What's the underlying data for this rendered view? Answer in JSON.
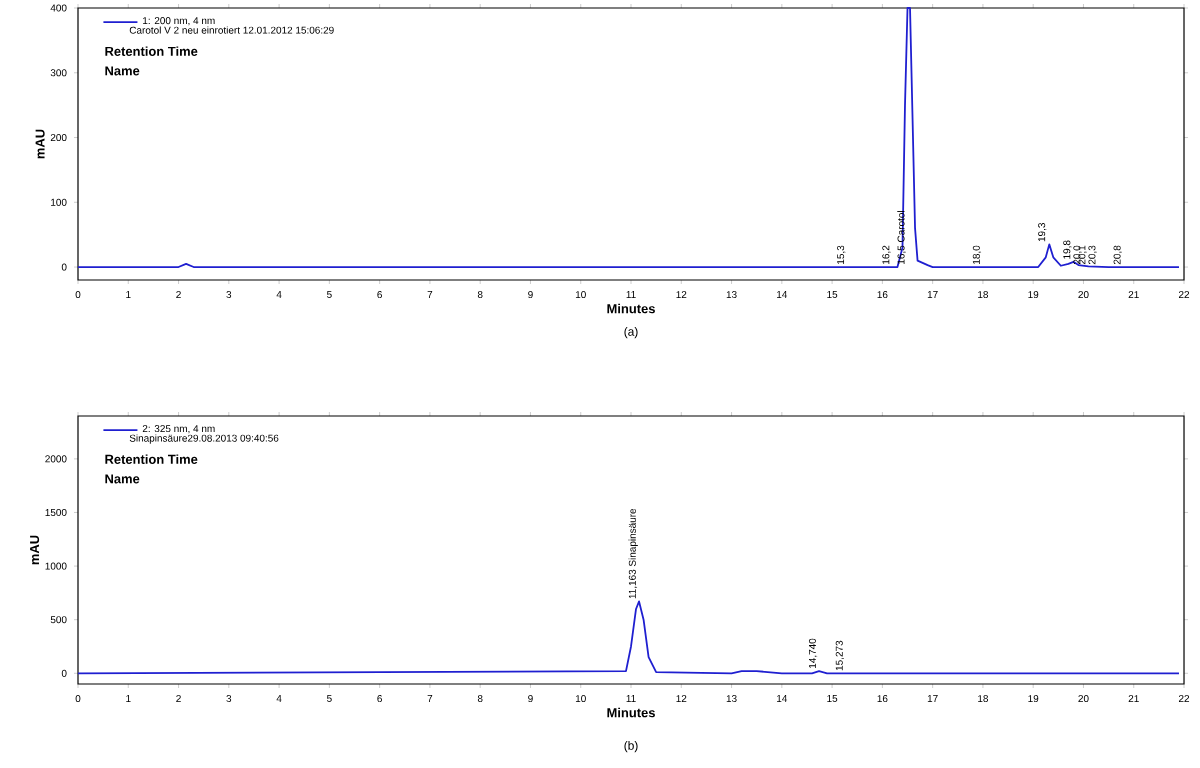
{
  "chart_data": [
    {
      "type": "line",
      "xlabel": "Minutes",
      "ylabel": "mAU",
      "xlim": [
        0,
        22
      ],
      "ylim": [
        -20,
        400
      ],
      "xticks": [
        0,
        1,
        2,
        3,
        4,
        5,
        6,
        7,
        8,
        9,
        10,
        11,
        12,
        13,
        14,
        15,
        16,
        17,
        18,
        19,
        20,
        21,
        22
      ],
      "yticks": [
        0,
        100,
        200,
        300,
        400
      ],
      "legend": "top left",
      "series": [
        {
          "name": "1: 200 nm, 4 nm",
          "color": "#1f1fd0",
          "x": [
            0,
            2.0,
            2.15,
            2.3,
            15,
            16.3,
            16.4,
            16.45,
            16.5,
            16.55,
            16.6,
            16.65,
            16.7,
            16.9,
            17,
            19.1,
            19.25,
            19.32,
            19.4,
            19.55,
            19.7,
            19.8,
            19.9,
            20.1,
            20.5,
            21.9
          ],
          "values": [
            0,
            0,
            5,
            0,
            0,
            0,
            30,
            250,
            400,
            400,
            230,
            60,
            10,
            3,
            0,
            0,
            15,
            35,
            15,
            2,
            5,
            8,
            3,
            1,
            0,
            0
          ]
        }
      ],
      "annotations": [
        "Carotol V 2 neu einrotiert 12.01.2012 15:06:29",
        "Retention Time",
        "Name",
        {
          "text": "15,3",
          "x": 15.3,
          "y": 0
        },
        {
          "text": "16,2",
          "x": 16.2,
          "y": 0
        },
        {
          "text": "16,5 Carotol",
          "x": 16.5,
          "y": 0
        },
        {
          "text": "18,0",
          "x": 18.0,
          "y": 0
        },
        {
          "text": "19,3",
          "x": 19.3,
          "y": 35
        },
        {
          "text": "19,8",
          "x": 19.8,
          "y": 8
        },
        {
          "text": "20,0",
          "x": 20.0,
          "y": 0
        },
        {
          "text": "20,1",
          "x": 20.1,
          "y": 0
        },
        {
          "text": "20,3",
          "x": 20.3,
          "y": 0
        },
        {
          "text": "20,8",
          "x": 20.8,
          "y": 0
        },
        "(a)"
      ]
    },
    {
      "type": "line",
      "xlabel": "Minutes",
      "ylabel": "mAU",
      "xlim": [
        0,
        22
      ],
      "ylim": [
        -100,
        2400
      ],
      "xticks": [
        0,
        1,
        2,
        3,
        4,
        5,
        6,
        7,
        8,
        9,
        10,
        11,
        12,
        13,
        14,
        15,
        16,
        17,
        18,
        19,
        20,
        21,
        22
      ],
      "yticks": [
        0,
        500,
        1000,
        1500,
        2000
      ],
      "legend": "top left",
      "series": [
        {
          "name": "2: 325 nm, 4 nm",
          "color": "#1f1fd0",
          "x": [
            0,
            10.9,
            11.0,
            11.1,
            11.16,
            11.25,
            11.35,
            11.5,
            13.0,
            13.2,
            13.5,
            14.0,
            14.6,
            14.74,
            14.9,
            21.9
          ],
          "values": [
            0,
            20,
            250,
            600,
            670,
            500,
            150,
            10,
            0,
            20,
            20,
            0,
            0,
            20,
            0,
            0
          ]
        }
      ],
      "annotations": [
        "Sinapinsäure29.08.2013 09:40:56",
        "Retention Time",
        "Name",
        {
          "text": "11,163  Sinapinsäure",
          "x": 11.163,
          "y": 670
        },
        {
          "text": "14,740",
          "x": 14.74,
          "y": 20
        },
        {
          "text": "15,273",
          "x": 15.273,
          "y": 0
        },
        "(b)"
      ]
    }
  ]
}
